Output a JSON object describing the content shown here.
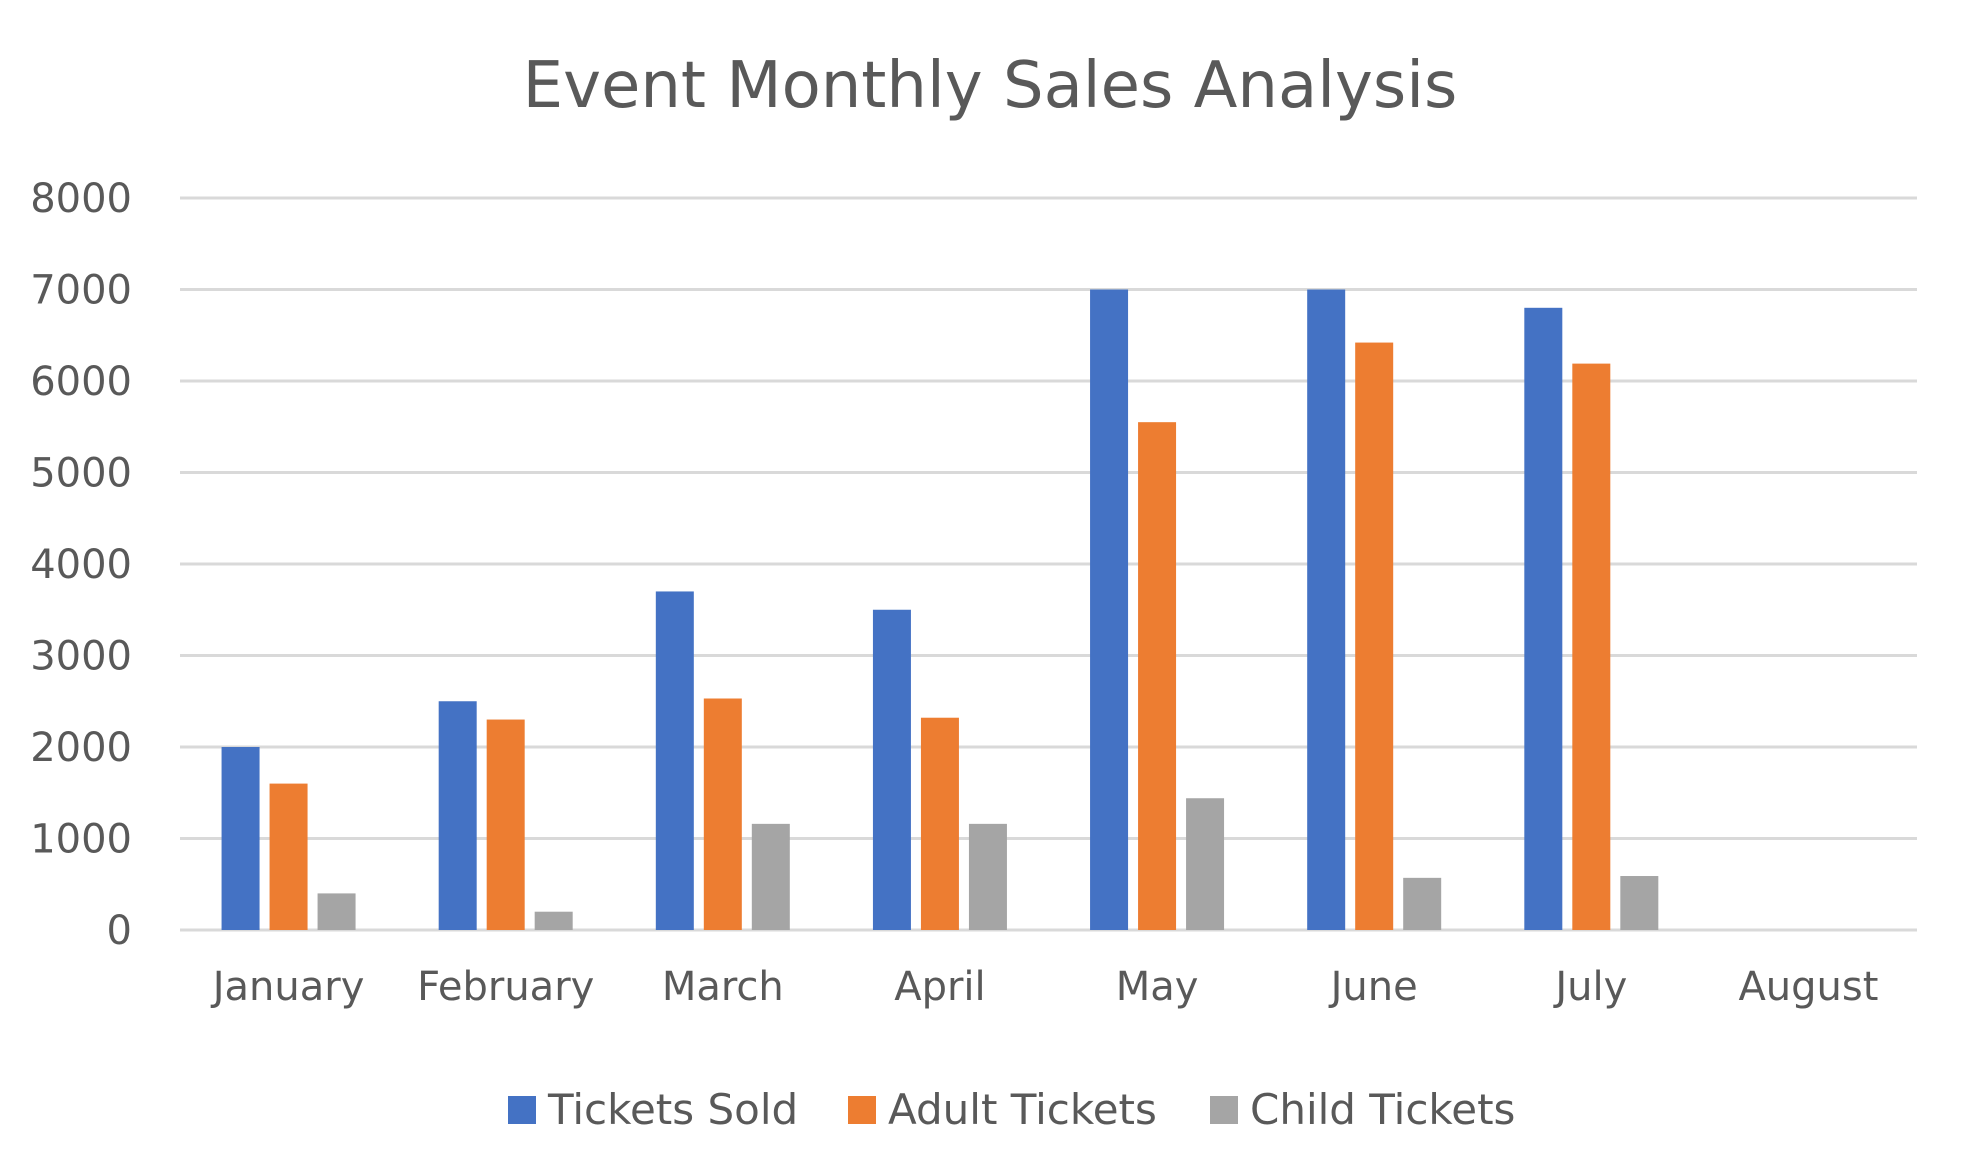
{
  "chart_data": {
    "type": "bar",
    "title": "Event Monthly Sales Analysis",
    "xlabel": "",
    "ylabel": "",
    "categories": [
      "January",
      "February",
      "March",
      "April",
      "May",
      "June",
      "July",
      "August"
    ],
    "ylim": [
      0,
      8000
    ],
    "yticks": [
      0,
      1000,
      2000,
      3000,
      4000,
      5000,
      6000,
      7000,
      8000
    ],
    "grid": true,
    "legend_position": "bottom",
    "series": [
      {
        "name": "Tickets Sold",
        "color": "#4472c4",
        "values": [
          2000,
          2500,
          3700,
          3500,
          7000,
          7000,
          6800,
          null
        ]
      },
      {
        "name": "Adult Tickets",
        "color": "#ed7d31",
        "values": [
          1600,
          2300,
          2530,
          2320,
          5550,
          6420,
          6190,
          null
        ]
      },
      {
        "name": "Child Tickets",
        "color": "#a5a5a5",
        "values": [
          400,
          200,
          1160,
          1160,
          1440,
          570,
          590,
          null
        ]
      }
    ]
  }
}
